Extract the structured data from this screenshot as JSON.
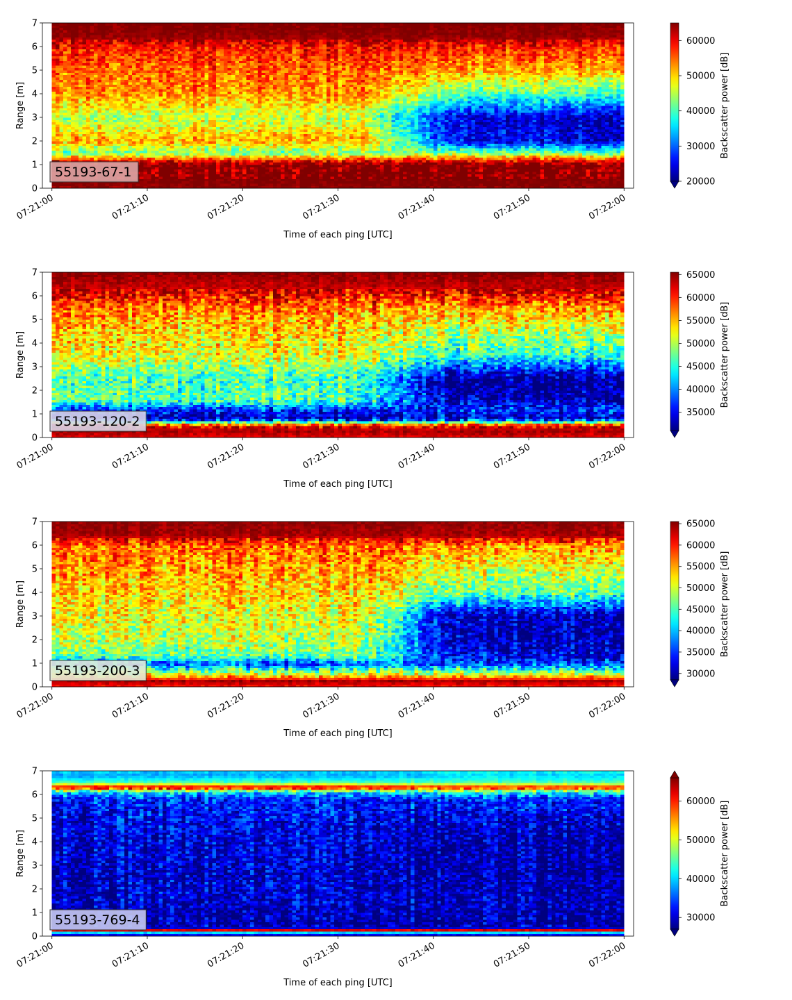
{
  "chart_data": [
    {
      "type": "heatmap",
      "label": "55193-67-1",
      "label_box_color": "#dba6a6",
      "xlabel": "Time of each ping [UTC]",
      "ylabel": "Range [m]",
      "xticks": [
        "07:21:00",
        "07:21:10",
        "07:21:20",
        "07:21:30",
        "07:21:40",
        "07:21:50",
        "07:22:00"
      ],
      "x_range": [
        "07:21:00",
        "07:22:00"
      ],
      "yticks": [
        "0",
        "1",
        "2",
        "3",
        "4",
        "5",
        "6",
        "7"
      ],
      "ylim": [
        0,
        7
      ],
      "colorbar": {
        "label": "Backscatter power [dB]",
        "ticks": [
          "20000",
          "30000",
          "40000",
          "50000",
          "60000"
        ],
        "range": [
          20000,
          65000
        ],
        "extend": "min",
        "colormap": "jet"
      },
      "profile": {
        "range_m": [
          0.0,
          0.2,
          0.35,
          1.0,
          1.15,
          1.5,
          2.0,
          3.0,
          4.0,
          5.0,
          6.0,
          6.4,
          7.0
        ],
        "early_values": [
          64000,
          65000,
          65000,
          65000,
          60000,
          42000,
          52000,
          45000,
          53000,
          55000,
          59000,
          64000,
          65000
        ],
        "late_values": [
          64000,
          65000,
          65000,
          65000,
          60000,
          42000,
          25000,
          24000,
          40000,
          52000,
          58000,
          64000,
          65000
        ]
      }
    },
    {
      "type": "heatmap",
      "label": "55193-120-2",
      "label_box_color": "#d8d5e8",
      "xlabel": "Time of each ping [UTC]",
      "ylabel": "Range [m]",
      "xticks": [
        "07:21:00",
        "07:21:10",
        "07:21:20",
        "07:21:30",
        "07:21:40",
        "07:21:50",
        "07:22:00"
      ],
      "x_range": [
        "07:21:00",
        "07:22:00"
      ],
      "yticks": [
        "0",
        "1",
        "2",
        "3",
        "4",
        "5",
        "6",
        "7"
      ],
      "ylim": [
        0,
        7
      ],
      "colorbar": {
        "label": "Backscatter power [dB]",
        "ticks": [
          "35000",
          "40000",
          "45000",
          "50000",
          "55000",
          "60000",
          "65000"
        ],
        "range": [
          31000,
          65500
        ],
        "extend": "min",
        "colormap": "jet"
      },
      "profile": {
        "range_m": [
          0.0,
          0.25,
          0.5,
          0.6,
          0.8,
          1.2,
          1.6,
          2.5,
          3.5,
          4.5,
          5.5,
          6.3,
          7.0
        ],
        "early_values": [
          62000,
          64000,
          62000,
          52000,
          33000,
          37000,
          47000,
          46000,
          52000,
          54000,
          57000,
          63000,
          65000
        ],
        "late_values": [
          62000,
          64000,
          62000,
          52000,
          33000,
          37000,
          32000,
          31000,
          45000,
          50000,
          56000,
          63000,
          65000
        ]
      }
    },
    {
      "type": "heatmap",
      "label": "55193-200-3",
      "label_box_color": "#e2ead8",
      "xlabel": "Time of each ping [UTC]",
      "ylabel": "Range [m]",
      "xticks": [
        "07:21:00",
        "07:21:10",
        "07:21:20",
        "07:21:30",
        "07:21:40",
        "07:21:50",
        "07:22:00"
      ],
      "x_range": [
        "07:21:00",
        "07:22:00"
      ],
      "yticks": [
        "0",
        "1",
        "2",
        "3",
        "4",
        "5",
        "6",
        "7"
      ],
      "ylim": [
        0,
        7
      ],
      "colorbar": {
        "label": "Backscatter power [dB]",
        "ticks": [
          "30000",
          "35000",
          "40000",
          "45000",
          "50000",
          "55000",
          "60000",
          "65000"
        ],
        "range": [
          28500,
          65500
        ],
        "extend": "min",
        "colormap": "jet"
      },
      "profile": {
        "range_m": [
          0.0,
          0.25,
          0.5,
          0.7,
          1.0,
          1.3,
          2.0,
          3.0,
          4.0,
          5.0,
          6.0,
          6.4,
          7.0
        ],
        "early_values": [
          60000,
          64000,
          52000,
          45000,
          36000,
          46000,
          49000,
          51000,
          53000,
          55000,
          57000,
          64000,
          65000
        ],
        "late_values": [
          60000,
          64000,
          52000,
          45000,
          36000,
          33000,
          31000,
          31000,
          46000,
          51000,
          56000,
          64000,
          65000
        ]
      }
    },
    {
      "type": "heatmap",
      "label": "55193-769-4",
      "label_box_color": "#c7c9f0",
      "xlabel": "Time of each ping [UTC]",
      "ylabel": "Range [m]",
      "xticks": [
        "07:21:00",
        "07:21:10",
        "07:21:20",
        "07:21:30",
        "07:21:40",
        "07:21:50",
        "07:22:00"
      ],
      "x_range": [
        "07:21:00",
        "07:22:00"
      ],
      "yticks": [
        "0",
        "1",
        "2",
        "3",
        "4",
        "5",
        "6",
        "7"
      ],
      "ylim": [
        0,
        7
      ],
      "colorbar": {
        "label": "Backscatter power [dB]",
        "ticks": [
          "30000",
          "40000",
          "50000",
          "60000"
        ],
        "range": [
          27000,
          66000
        ],
        "extend": "both",
        "colormap": "jet"
      },
      "profile": {
        "range_m": [
          0.0,
          0.15,
          0.25,
          0.35,
          0.6,
          1.5,
          3.0,
          4.5,
          5.8,
          6.1,
          6.3,
          6.5,
          6.8,
          7.0
        ],
        "early_values": [
          28000,
          40000,
          62000,
          30000,
          28000,
          30000,
          30000,
          31000,
          33000,
          40000,
          64000,
          45000,
          38000,
          40000
        ],
        "late_values": [
          28000,
          40000,
          62000,
          30000,
          28000,
          29000,
          28000,
          29000,
          33000,
          42000,
          62000,
          45000,
          40000,
          42000
        ]
      }
    }
  ]
}
